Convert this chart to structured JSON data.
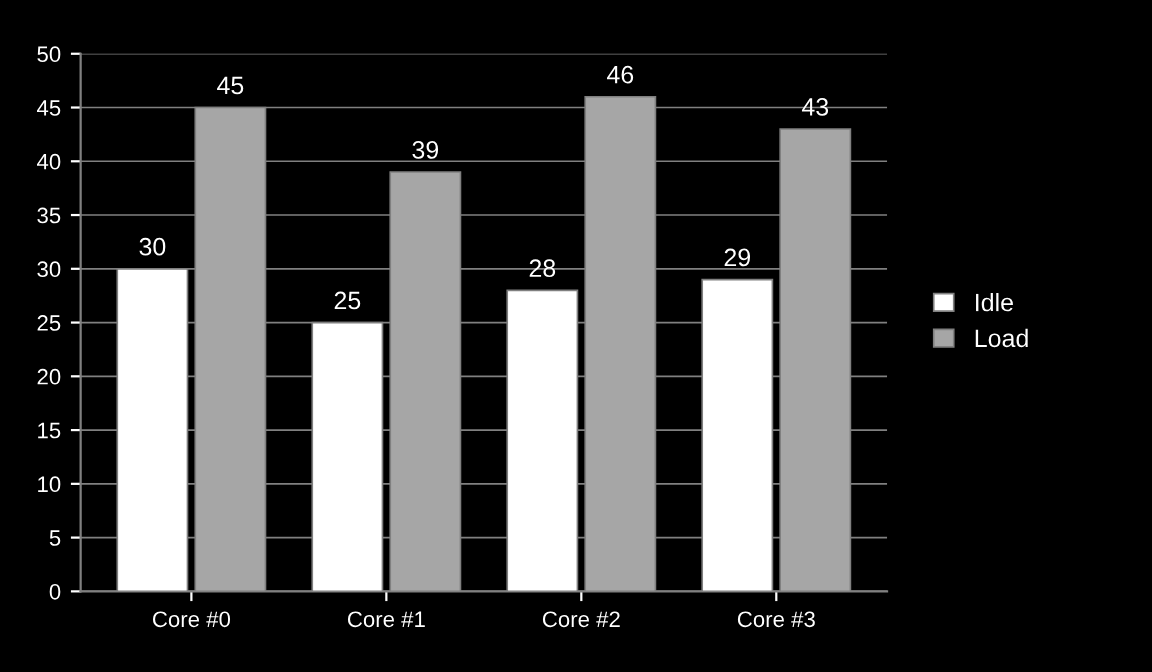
{
  "chart_data": {
    "type": "bar",
    "categories": [
      "Core #0",
      "Core #1",
      "Core #2",
      "Core #3"
    ],
    "series": [
      {
        "name": "Idle",
        "color": "#ffffff",
        "values": [
          30,
          25,
          28,
          29
        ]
      },
      {
        "name": "Load",
        "color": "#a6a6a6",
        "values": [
          45,
          39,
          46,
          43
        ]
      }
    ],
    "ylim": [
      0,
      50
    ],
    "yticks": [
      0,
      5,
      10,
      15,
      20,
      25,
      30,
      35,
      40,
      45,
      50
    ],
    "grid": "y",
    "legend": "right",
    "data_labels": true
  }
}
